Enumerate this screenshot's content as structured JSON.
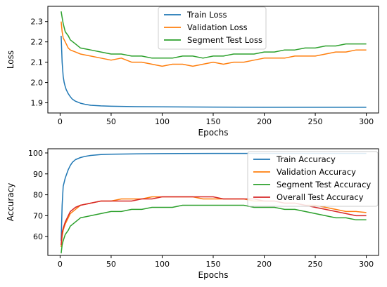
{
  "colors": {
    "train": "#1f77b4",
    "validation": "#ff7f0e",
    "segment": "#2ca02c",
    "overall": "#d62728"
  },
  "chart_data": [
    {
      "type": "line",
      "xlabel": "Epochs",
      "ylabel": "Loss",
      "xlim": [
        -12,
        312
      ],
      "ylim": [
        1.85,
        2.375
      ],
      "xticks": [
        0,
        50,
        100,
        150,
        200,
        250,
        300
      ],
      "yticks": [
        1.9,
        2.0,
        2.1,
        2.2,
        2.3
      ],
      "ytick_format": 1,
      "legend_position": "top-center",
      "series": [
        {
          "name": "Train Loss",
          "color": "#1f77b4",
          "x": [
            1,
            2,
            3,
            4,
            5,
            6,
            8,
            10,
            12,
            15,
            20,
            25,
            30,
            40,
            50,
            75,
            100,
            150,
            200,
            250,
            300
          ],
          "y": [
            2.23,
            2.1,
            2.03,
            2.0,
            1.98,
            1.965,
            1.945,
            1.93,
            1.918,
            1.908,
            1.898,
            1.892,
            1.888,
            1.885,
            1.883,
            1.881,
            1.88,
            1.879,
            1.878,
            1.878,
            1.878
          ]
        },
        {
          "name": "Validation Loss",
          "color": "#ff7f0e",
          "x": [
            1,
            2,
            3,
            5,
            8,
            10,
            15,
            20,
            30,
            40,
            50,
            60,
            70,
            80,
            90,
            100,
            110,
            120,
            130,
            140,
            150,
            160,
            170,
            180,
            190,
            200,
            210,
            220,
            230,
            240,
            250,
            260,
            270,
            280,
            290,
            300
          ],
          "y": [
            2.3,
            2.25,
            2.22,
            2.2,
            2.17,
            2.16,
            2.15,
            2.14,
            2.13,
            2.12,
            2.11,
            2.12,
            2.1,
            2.1,
            2.09,
            2.08,
            2.09,
            2.09,
            2.08,
            2.09,
            2.1,
            2.09,
            2.1,
            2.1,
            2.11,
            2.12,
            2.12,
            2.12,
            2.13,
            2.13,
            2.13,
            2.14,
            2.15,
            2.15,
            2.16,
            2.16
          ]
        },
        {
          "name": "Segment Test Loss",
          "color": "#2ca02c",
          "x": [
            1,
            2,
            3,
            5,
            8,
            10,
            15,
            20,
            30,
            40,
            50,
            60,
            70,
            80,
            90,
            100,
            110,
            120,
            130,
            140,
            150,
            160,
            170,
            180,
            190,
            200,
            210,
            220,
            230,
            240,
            250,
            260,
            270,
            280,
            290,
            300
          ],
          "y": [
            2.35,
            2.32,
            2.29,
            2.25,
            2.23,
            2.21,
            2.19,
            2.17,
            2.16,
            2.15,
            2.14,
            2.14,
            2.13,
            2.13,
            2.12,
            2.12,
            2.12,
            2.13,
            2.13,
            2.12,
            2.13,
            2.13,
            2.14,
            2.14,
            2.14,
            2.15,
            2.15,
            2.16,
            2.16,
            2.17,
            2.17,
            2.18,
            2.18,
            2.19,
            2.19,
            2.19
          ]
        }
      ]
    },
    {
      "type": "line",
      "xlabel": "Epochs",
      "ylabel": "Accuracy",
      "xlim": [
        -12,
        312
      ],
      "ylim": [
        51,
        102
      ],
      "xticks": [
        0,
        50,
        100,
        150,
        200,
        250,
        300
      ],
      "yticks": [
        60,
        70,
        80,
        90,
        100
      ],
      "ytick_format": 0,
      "legend_position": "top-right",
      "series": [
        {
          "name": "Train Accuracy",
          "color": "#1f77b4",
          "x": [
            1,
            2,
            3,
            5,
            8,
            10,
            12,
            15,
            20,
            25,
            30,
            40,
            50,
            75,
            100,
            150,
            200,
            250,
            300
          ],
          "y": [
            58,
            75,
            84,
            88,
            92,
            94,
            95.5,
            96.8,
            97.8,
            98.4,
            98.8,
            99.2,
            99.4,
            99.6,
            99.7,
            99.8,
            99.8,
            99.8,
            99.8
          ]
        },
        {
          "name": "Validation Accuracy",
          "color": "#ff7f0e",
          "x": [
            1,
            2,
            3,
            5,
            8,
            10,
            15,
            20,
            30,
            40,
            50,
            60,
            70,
            80,
            90,
            100,
            110,
            120,
            130,
            140,
            150,
            160,
            170,
            180,
            190,
            200,
            210,
            220,
            230,
            240,
            250,
            260,
            270,
            280,
            290,
            300
          ],
          "y": [
            55,
            60,
            63,
            66,
            69,
            71,
            73,
            75,
            76,
            77,
            77,
            78,
            78,
            78,
            79,
            79,
            79,
            79,
            79,
            78,
            78,
            78,
            78,
            78,
            77,
            77,
            77,
            76,
            76,
            75,
            75,
            74,
            73,
            72,
            72,
            71.5
          ]
        },
        {
          "name": "Segment Test Accuracy",
          "color": "#2ca02c",
          "x": [
            1,
            2,
            3,
            5,
            8,
            10,
            15,
            20,
            30,
            40,
            50,
            60,
            70,
            80,
            90,
            100,
            110,
            120,
            130,
            140,
            150,
            160,
            170,
            180,
            190,
            200,
            210,
            220,
            230,
            240,
            250,
            260,
            270,
            280,
            290,
            300
          ],
          "y": [
            52,
            56,
            58,
            61,
            63,
            65,
            67,
            69,
            70,
            71,
            72,
            72,
            73,
            73,
            74,
            74,
            74,
            75,
            75,
            75,
            75,
            75,
            75,
            75,
            74,
            74,
            74,
            73,
            73,
            72,
            71,
            70,
            69,
            69,
            68,
            68
          ]
        },
        {
          "name": "Overall Test Accuracy",
          "color": "#d62728",
          "x": [
            1,
            2,
            3,
            5,
            8,
            10,
            15,
            20,
            30,
            40,
            50,
            60,
            70,
            80,
            90,
            100,
            110,
            120,
            130,
            140,
            150,
            160,
            170,
            180,
            190,
            200,
            210,
            220,
            230,
            240,
            250,
            260,
            270,
            280,
            290,
            300
          ],
          "y": [
            56,
            62,
            64,
            67,
            70,
            72,
            74,
            75,
            76,
            77,
            77,
            77,
            77,
            78,
            78,
            79,
            79,
            79,
            79,
            79,
            79,
            78,
            78,
            78,
            78,
            77,
            77,
            76,
            76,
            75,
            74,
            73,
            72,
            71,
            70,
            70
          ]
        }
      ]
    }
  ]
}
